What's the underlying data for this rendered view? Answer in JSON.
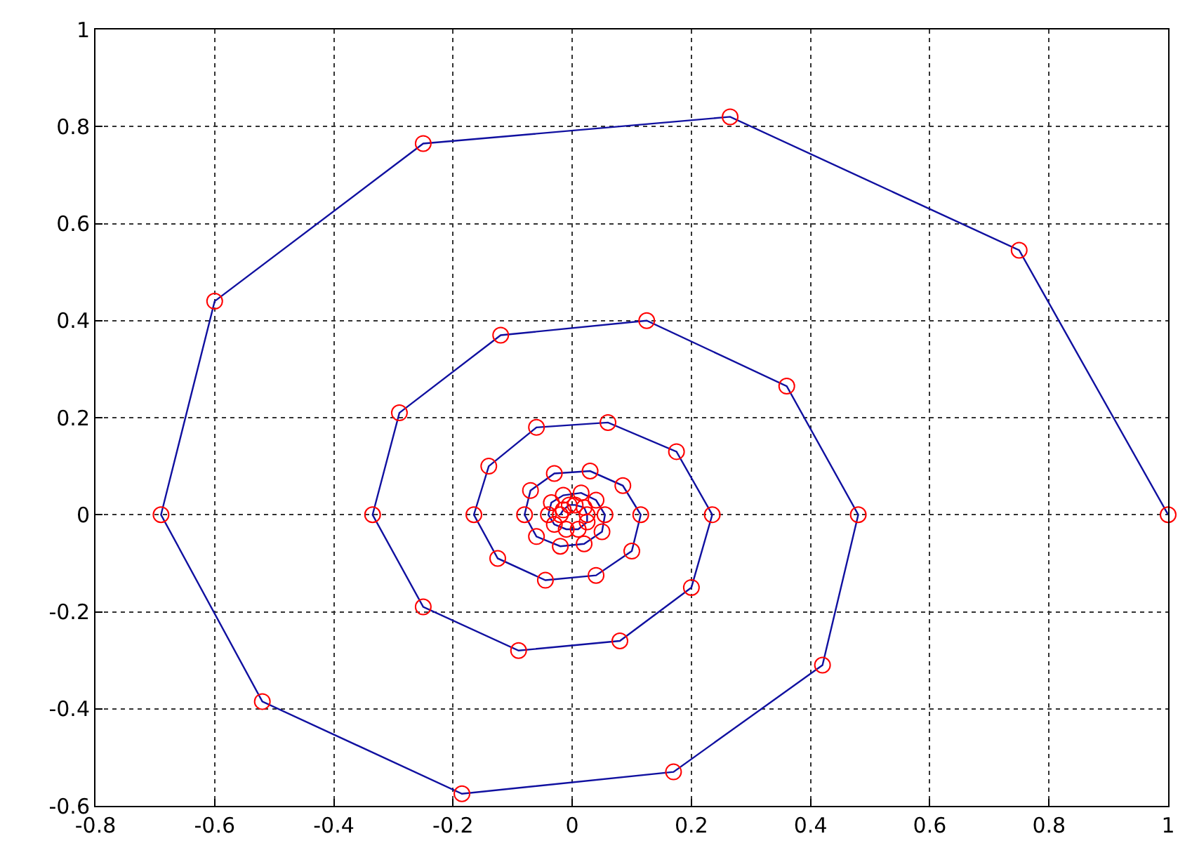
{
  "chart_data": {
    "type": "line",
    "x": [
      1,
      0.75,
      0.265,
      -0.25,
      -0.6,
      -0.69,
      -0.52,
      -0.185,
      0.17,
      0.42,
      0.48,
      0.36,
      0.125,
      -0.12,
      -0.29,
      -0.335,
      -0.25,
      -0.09,
      0.08,
      0.2,
      0.235,
      0.175,
      0.06,
      -0.06,
      -0.14,
      -0.165,
      -0.125,
      -0.045,
      0.04,
      0.1,
      0.115,
      0.085,
      0.03,
      -0.03,
      -0.07,
      -0.08,
      -0.06,
      -0.02,
      0.02,
      0.05,
      0.055,
      0.04,
      0.015,
      -0.015,
      -0.035,
      -0.04,
      -0.03,
      -0.01,
      0.01,
      0.025,
      0.025,
      0.02,
      0.005,
      -0.005,
      -0.015,
      -0.02
    ],
    "series": [
      {
        "color": "#1010a0",
        "marker": "none",
        "values": [
          0,
          0.545,
          0.82,
          0.765,
          0.44,
          0,
          -0.385,
          -0.575,
          -0.53,
          -0.31,
          0,
          0.265,
          0.4,
          0.37,
          0.21,
          0,
          -0.19,
          -0.28,
          -0.26,
          -0.15,
          0,
          0.13,
          0.19,
          0.18,
          0.1,
          0,
          -0.09,
          -0.135,
          -0.125,
          -0.075,
          0,
          0.06,
          0.09,
          0.085,
          0.05,
          0,
          -0.045,
          -0.065,
          -0.06,
          -0.035,
          0,
          0.03,
          0.045,
          0.04,
          0.025,
          0,
          -0.02,
          -0.03,
          -0.03,
          -0.015,
          0,
          0.015,
          0.02,
          0.02,
          0.01,
          0
        ]
      },
      {
        "type": "scatter",
        "color": "#ff0000",
        "marker": "circle",
        "values": [
          0,
          0.545,
          0.82,
          0.765,
          0.44,
          0,
          -0.385,
          -0.575,
          -0.53,
          -0.31,
          0,
          0.265,
          0.4,
          0.37,
          0.21,
          0,
          -0.19,
          -0.28,
          -0.26,
          -0.15,
          0,
          0.13,
          0.19,
          0.18,
          0.1,
          0,
          -0.09,
          -0.135,
          -0.125,
          -0.075,
          0,
          0.06,
          0.09,
          0.085,
          0.05,
          0,
          -0.045,
          -0.065,
          -0.06,
          -0.035,
          0,
          0.03,
          0.045,
          0.04,
          0.025,
          0,
          -0.02,
          -0.03,
          -0.03,
          -0.015,
          0,
          0.015,
          0.02,
          0.02,
          0.01,
          0
        ]
      }
    ],
    "xlim": [
      -0.8,
      1
    ],
    "xticks": [
      -0.8,
      -0.6,
      -0.4,
      -0.2,
      0,
      0.2,
      0.4,
      0.6,
      0.8,
      1
    ],
    "ylim": [
      -0.6,
      1
    ],
    "yticks": [
      -0.6,
      -0.4,
      -0.2,
      0,
      0.2,
      0.4,
      0.6,
      0.8,
      1
    ],
    "grid": true,
    "line_style": "solid"
  }
}
